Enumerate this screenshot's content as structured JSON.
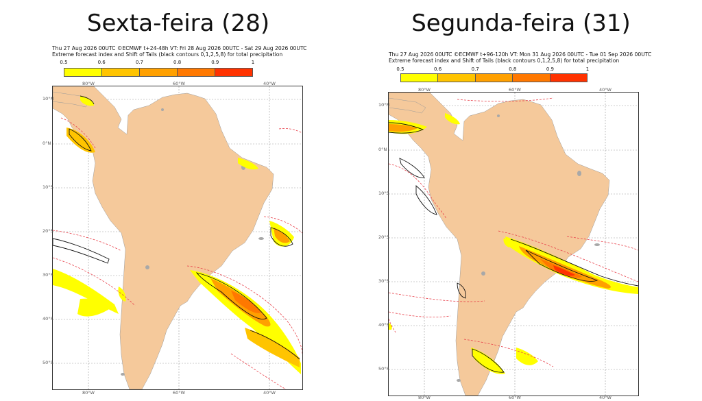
{
  "left": {
    "title": "Sexta-feira (28)",
    "header1": "Thu 27 Aug 2026 00UTC ©ECMWF t+24-48h  VT: Fri 28 Aug 2026 00UTC - Sat 29 Aug 2026 00UTC",
    "header2": "Extreme forecast index and Shift of Tails (black contours 0,1,2,5,8) for total precipitation",
    "lon_labels_top": [
      "80°W",
      "60°W",
      "40°W"
    ],
    "lon_labels_bottom": [
      "80°W",
      "60°W",
      "40°W"
    ],
    "lat_labels": [
      "10°N",
      "0°N",
      "10°S",
      "20°S",
      "30°S",
      "40°S",
      "50°S"
    ]
  },
  "right": {
    "title": "Segunda-feira (31)",
    "header1": "Thu 27 Aug 2026 00UTC ©ECMWF t+96-120h  VT: Mon 31 Aug 2026 00UTC - Tue 01 Sep 2026 00UTC",
    "header2": "Extreme forecast index and Shift of Tails (black contours 0,1,2,5,8) for total precipitation",
    "lon_labels_top": [
      "80°W",
      "60°W",
      "40°W"
    ],
    "lon_labels_bottom": [
      "80°W",
      "60°W",
      "40°W"
    ],
    "lat_labels": [
      "10°N",
      "0°N",
      "10°S",
      "20°S",
      "30°S",
      "40°S",
      "50°S"
    ]
  },
  "legend": {
    "ticks": [
      "0.5",
      "0.6",
      "0.7",
      "0.8",
      "0.9",
      "1"
    ],
    "colors": [
      "#ffff00",
      "#ffc400",
      "#ffa000",
      "#ff7800",
      "#ff3200"
    ]
  },
  "colors": {
    "land": "#f5c99b",
    "contour_red": "#e8404a",
    "contour_black": "#111111",
    "grid": "#888888",
    "lakes": "#a8a8a8"
  }
}
